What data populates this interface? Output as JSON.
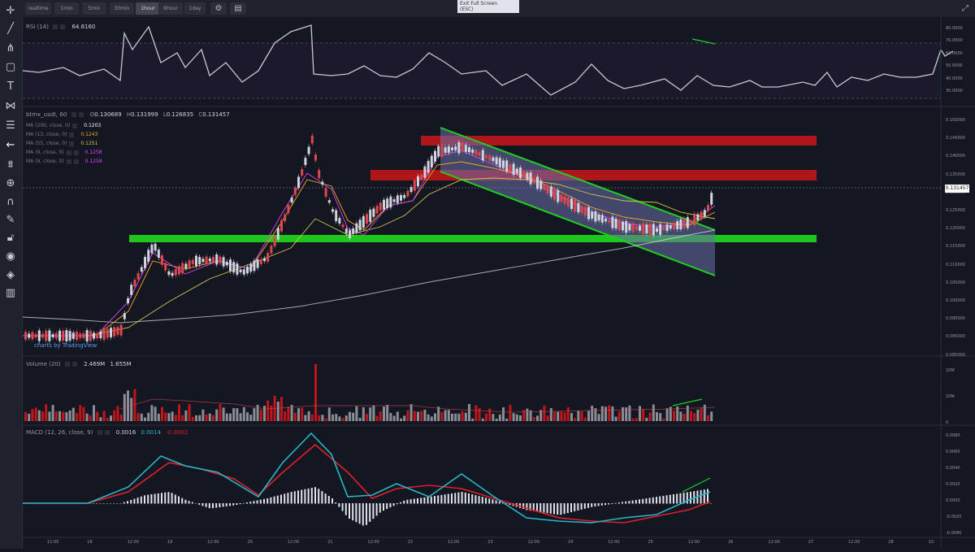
{
  "toolbar": {
    "timeframes": [
      "realtime",
      "1min",
      "5min",
      "30min",
      "1hour",
      "6hour",
      "1day"
    ],
    "active_timeframe": "1hour",
    "settings_icon": "gear-icon",
    "chart_icon": "chart-type-icon"
  },
  "fullscreen": {
    "exit_label_1": "Exit Full Screen",
    "exit_label_2": "(ESC)"
  },
  "left_tools": [
    "crosshair-icon",
    "trend-line-icon",
    "pitchfork-icon",
    "rectangle-icon",
    "text-icon",
    "pattern-icon",
    "measure-icon",
    "back-arrow-icon",
    "forecast-icon",
    "zoom-icon",
    "magnet-icon",
    "brush-icon",
    "lock-icon",
    "eye-icon",
    "layers-icon",
    "trash-icon"
  ],
  "rsi": {
    "label": "RSI (14)",
    "value": "64.8160",
    "axis": [
      "80.0000",
      "70.0000",
      "60.0000",
      "50.0000",
      "40.0000",
      "30.0000"
    ]
  },
  "main": {
    "symbol": "btmx_usdt, 60",
    "ohlc": {
      "o": "0.130689",
      "h": "0.131999",
      "l": "0.126835",
      "c": "0.131457"
    },
    "ma": [
      {
        "label": "MA (200, close, 0)",
        "value": "0.1203",
        "color": "#ffffff"
      },
      {
        "label": "MA (13, close, 0)",
        "value": "0.1243",
        "color": "#f5a623"
      },
      {
        "label": "MA (55, close, 0)",
        "value": "0.1251",
        "color": "#d4c24a"
      },
      {
        "label": "MA (9, close, 0)",
        "value": "0.1258",
        "color": "#e040fb"
      },
      {
        "label": "MA (9, close, 0)",
        "value": "0.1258",
        "color": "#e040fb"
      }
    ],
    "price_axis": [
      "0.150000",
      "0.145000",
      "0.140000",
      "0.135000",
      "0.130000",
      "0.125000",
      "0.120000",
      "0.115000",
      "0.110000",
      "0.105000",
      "0.100000",
      "0.095000",
      "0.090000",
      "0.085000"
    ],
    "last_price": "0.131457",
    "watermark": "charts by TradingView"
  },
  "volume": {
    "label": "Volume (20)",
    "v1": "2.469M",
    "v2": "1.655M",
    "axis": [
      "20M",
      "10M",
      "0"
    ]
  },
  "macd": {
    "label": "MACD (12, 26, close, 9)",
    "v1": "0.0016",
    "v2": "0.0014",
    "v3": "-0.0002",
    "axis": [
      "0.0080",
      "0.0060",
      "0.0040",
      "0.0020",
      "0.0000",
      "-0.0020",
      "-0.0040"
    ]
  },
  "time_axis": [
    "12:00",
    "18",
    "12:00",
    "19",
    "12:00",
    "20",
    "12:00",
    "21",
    "12:00",
    "22",
    "12:00",
    "23",
    "12:00",
    "24",
    "12:00",
    "25",
    "12:00",
    "26",
    "12:00",
    "27",
    "12:00",
    "28",
    "12:"
  ],
  "colors": {
    "up": "#d1d4dc",
    "down": "#e0474c",
    "green_zone": "#1fd01f",
    "red_zone": "#c0161b",
    "macd": "#29b6c8",
    "signal": "#e0202a"
  }
}
